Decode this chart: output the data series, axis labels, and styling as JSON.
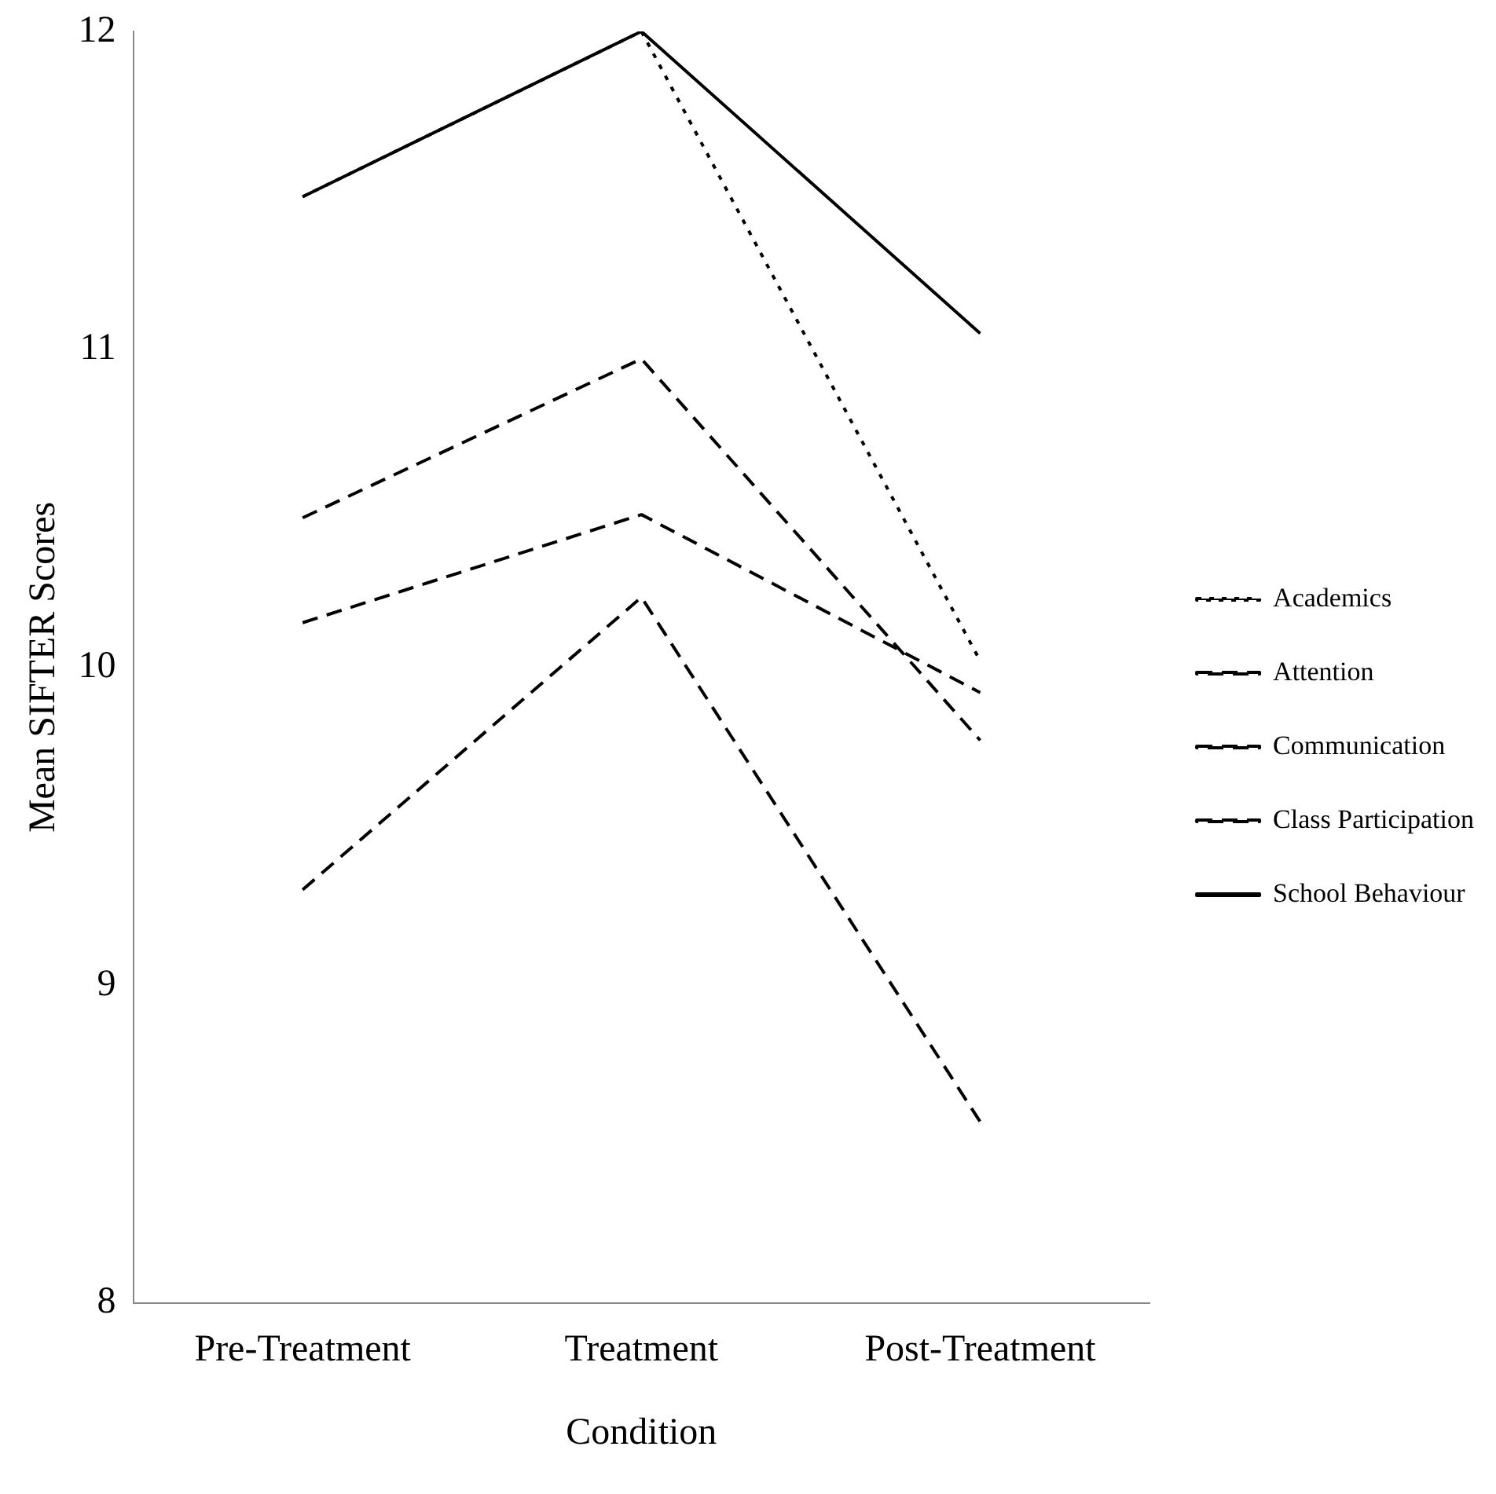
{
  "chart_data": {
    "type": "line",
    "xlabel": "Condition",
    "ylabel": "Mean SIFTER Scores",
    "categories": [
      "Pre-Treatment",
      "Treatment",
      "Post-Treatment"
    ],
    "ylim": [
      8,
      12
    ],
    "yticks": [
      8,
      9,
      10,
      11,
      12
    ],
    "grid": false,
    "legend": "right",
    "marker": "none",
    "series": [
      {
        "name": "Academics",
        "color": "#000000",
        "line_style": "dotted",
        "values": [
          11.48,
          12,
          10.02
        ]
      },
      {
        "name": "Attention",
        "color": "#000000",
        "line_style": "dashed",
        "values": [
          9.3,
          10.22,
          8.57
        ]
      },
      {
        "name": "Communication",
        "color": "#000000",
        "line_style": "dashed",
        "values": [
          10.14,
          10.48,
          9.92
        ]
      },
      {
        "name": "Class Participation",
        "color": "#000000",
        "line_style": "dashed",
        "values": [
          10.47,
          10.97,
          9.77
        ]
      },
      {
        "name": "School Behaviour",
        "color": "#000000",
        "line_style": "solid",
        "values": [
          11.48,
          12,
          11.05
        ]
      }
    ]
  }
}
